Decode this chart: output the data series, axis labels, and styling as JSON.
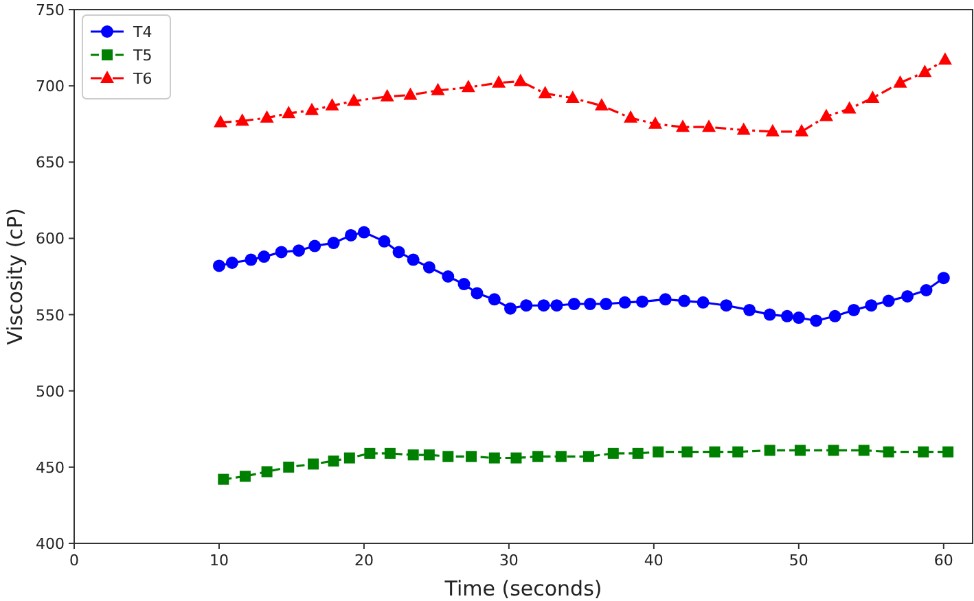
{
  "chart_data": {
    "type": "line",
    "xlabel": "Time (seconds)",
    "ylabel": "Viscosity (cP)",
    "xlim": [
      0,
      62
    ],
    "ylim": [
      400,
      750
    ],
    "xticks": [
      0,
      10,
      20,
      30,
      40,
      50,
      60
    ],
    "yticks": [
      400,
      450,
      500,
      550,
      600,
      650,
      700,
      750
    ],
    "grid": false,
    "legend": "top left",
    "series": [
      {
        "name": "T4",
        "color": "#0000ff",
        "marker": "circle",
        "line_style": "solid",
        "x": [
          10,
          10.9,
          12.2,
          13.1,
          14.3,
          15.5,
          16.6,
          17.9,
          19.1,
          20,
          21.4,
          22.4,
          23.4,
          24.5,
          25.8,
          26.9,
          27.8,
          29,
          30.1,
          31.2,
          32.4,
          33.3,
          34.5,
          35.6,
          36.7,
          38,
          39.2,
          40.8,
          42.1,
          43.4,
          45,
          46.6,
          48,
          49.2,
          50,
          51.2,
          52.5,
          53.8,
          55,
          56.2,
          57.5,
          58.8,
          60
        ],
        "values": [
          582,
          584,
          586,
          588,
          591,
          592,
          595,
          597,
          602,
          604,
          598,
          591,
          586,
          581,
          575,
          570,
          564,
          560,
          554,
          556,
          556,
          556,
          557,
          557,
          557,
          558,
          558.5,
          560,
          559,
          558,
          556,
          553,
          550,
          549,
          548,
          546,
          549,
          553,
          556,
          559,
          562,
          566,
          574
        ]
      },
      {
        "name": "T5",
        "color": "#008000",
        "marker": "square",
        "line_style": "dashed",
        "x": [
          10.3,
          11.8,
          13.3,
          14.8,
          16.5,
          17.9,
          19,
          20.4,
          21.8,
          23.4,
          24.5,
          25.8,
          27.4,
          29,
          30.5,
          32,
          33.6,
          35.5,
          37.2,
          38.9,
          40.3,
          42.3,
          44.2,
          45.8,
          48,
          50.1,
          52.4,
          54.5,
          56.2,
          58.6,
          60.3
        ],
        "values": [
          442,
          444,
          447,
          450,
          452,
          454,
          456,
          459,
          459,
          458,
          458,
          457,
          457,
          456,
          456,
          457,
          457,
          457,
          459,
          459,
          460,
          460,
          460,
          460,
          461,
          461,
          461,
          461,
          460,
          460,
          460
        ]
      },
      {
        "name": "T6",
        "color": "#ff0000",
        "marker": "triangle",
        "line_style": "dashdot",
        "x": [
          10.1,
          11.6,
          13.3,
          14.8,
          16.4,
          17.8,
          19.3,
          21.6,
          23.2,
          25.1,
          27.2,
          29.3,
          30.8,
          32.5,
          34.4,
          36.4,
          38.4,
          40.1,
          42,
          43.8,
          46.2,
          48.2,
          50.2,
          51.9,
          53.5,
          55.1,
          57,
          58.7,
          60.1
        ],
        "values": [
          676,
          677,
          679,
          682,
          684,
          687,
          690,
          693,
          694,
          697,
          699,
          702,
          703,
          695,
          692,
          687,
          679,
          675,
          673,
          673,
          671,
          670,
          670,
          680,
          685,
          692,
          702,
          709,
          717
        ]
      }
    ]
  }
}
